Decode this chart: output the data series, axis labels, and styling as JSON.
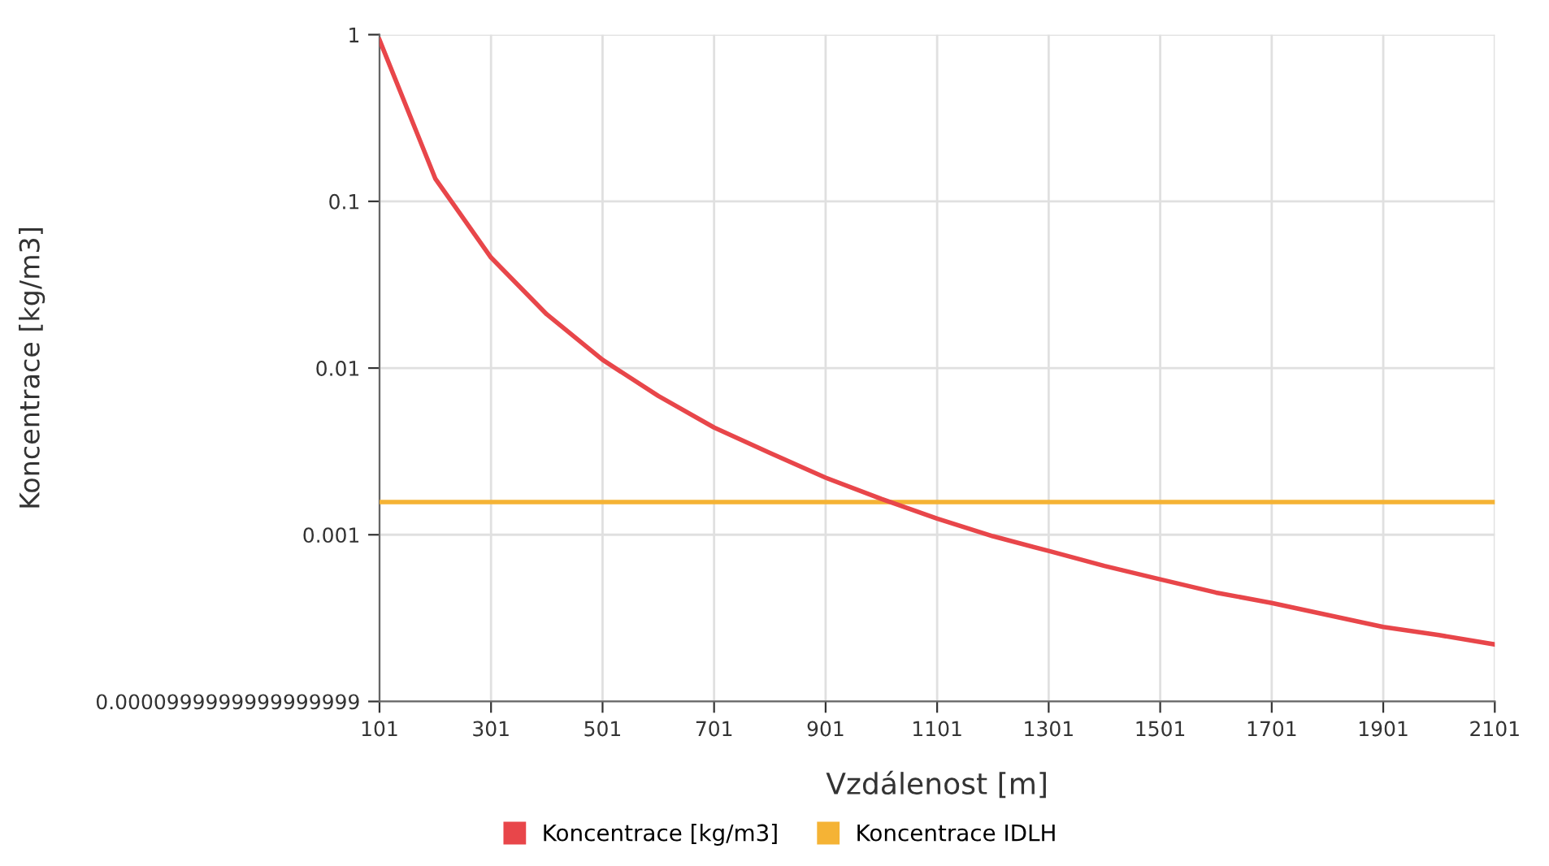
{
  "chart_data": {
    "type": "line",
    "xlabel": "Vzdálenost [m]",
    "ylabel": "Koncentrace [kg/m3]",
    "x": [
      101,
      201,
      301,
      401,
      501,
      601,
      701,
      801,
      901,
      1001,
      1101,
      1201,
      1301,
      1401,
      1501,
      1601,
      1701,
      1801,
      1901,
      2001,
      2101
    ],
    "series": [
      {
        "name": "Koncentrace [kg/m3]",
        "color": "#e8464a",
        "values": [
          0.93,
          0.137,
          0.046,
          0.021,
          0.0112,
          0.0068,
          0.0044,
          0.0031,
          0.0022,
          0.00164,
          0.00125,
          0.00098,
          0.0008,
          0.00065,
          0.00054,
          0.00045,
          0.00039,
          0.00033,
          0.00028,
          0.00025,
          0.00022
        ]
      },
      {
        "name": "Koncentrace IDLH",
        "color": "#f5b335",
        "values": [
          0.00157,
          0.00157,
          0.00157,
          0.00157,
          0.00157,
          0.00157,
          0.00157,
          0.00157,
          0.00157,
          0.00157,
          0.00157,
          0.00157,
          0.00157,
          0.00157,
          0.00157,
          0.00157,
          0.00157,
          0.00157,
          0.00157,
          0.00157,
          0.00157
        ]
      }
    ],
    "log": "y",
    "xlim": [
      101,
      2101
    ],
    "xticks": [
      101,
      301,
      501,
      701,
      901,
      1101,
      1301,
      1501,
      1701,
      1901,
      2101
    ],
    "ylim": [
      0.0001,
      1
    ],
    "yticks": [
      {
        "value": 0.0001,
        "label": "0.0000999999999999999"
      },
      {
        "value": 0.001,
        "label": "0.001"
      },
      {
        "value": 0.01,
        "label": "0.01"
      },
      {
        "value": 0.1,
        "label": "0.1"
      },
      {
        "value": 1,
        "label": "1"
      }
    ],
    "grid": true,
    "legend": "bottom",
    "marker": "none",
    "line_style": "solid"
  }
}
